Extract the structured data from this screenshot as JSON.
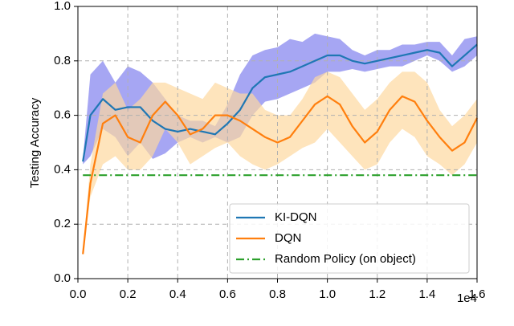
{
  "chart_data": {
    "type": "line",
    "ylabel": "Testing Accuracy",
    "x_offset_label": "1e4",
    "x": [
      0.02,
      0.05,
      0.1,
      0.15,
      0.2,
      0.25,
      0.3,
      0.35,
      0.4,
      0.45,
      0.5,
      0.55,
      0.6,
      0.65,
      0.7,
      0.75,
      0.8,
      0.85,
      0.9,
      0.95,
      1.0,
      1.05,
      1.1,
      1.15,
      1.2,
      1.25,
      1.3,
      1.35,
      1.4,
      1.45,
      1.5,
      1.55,
      1.6
    ],
    "series": [
      {
        "name": "KI-DQN",
        "color": "#1f77b4",
        "band_color": "#8080ee",
        "values": [
          0.43,
          0.6,
          0.66,
          0.62,
          0.63,
          0.63,
          0.58,
          0.55,
          0.54,
          0.55,
          0.54,
          0.53,
          0.57,
          0.62,
          0.7,
          0.74,
          0.75,
          0.76,
          0.78,
          0.8,
          0.82,
          0.82,
          0.8,
          0.79,
          0.8,
          0.81,
          0.82,
          0.83,
          0.84,
          0.83,
          0.78,
          0.82,
          0.86
        ],
        "lower": [
          0.42,
          0.45,
          0.55,
          0.52,
          0.45,
          0.5,
          0.44,
          0.46,
          0.5,
          0.52,
          0.5,
          0.52,
          0.5,
          0.52,
          0.6,
          0.65,
          0.66,
          0.68,
          0.7,
          0.72,
          0.76,
          0.76,
          0.77,
          0.76,
          0.77,
          0.78,
          0.78,
          0.8,
          0.82,
          0.8,
          0.76,
          0.78,
          0.82
        ],
        "upper": [
          0.44,
          0.75,
          0.8,
          0.72,
          0.78,
          0.76,
          0.72,
          0.66,
          0.6,
          0.58,
          0.58,
          0.56,
          0.64,
          0.75,
          0.82,
          0.84,
          0.85,
          0.88,
          0.87,
          0.9,
          0.89,
          0.88,
          0.84,
          0.82,
          0.84,
          0.84,
          0.86,
          0.86,
          0.87,
          0.87,
          0.82,
          0.88,
          0.89
        ]
      },
      {
        "name": "DQN",
        "color": "#ff7f0e",
        "band_color": "#fdd9a0",
        "values": [
          0.09,
          0.35,
          0.57,
          0.6,
          0.52,
          0.5,
          0.6,
          0.65,
          0.6,
          0.53,
          0.55,
          0.6,
          0.6,
          0.58,
          0.55,
          0.52,
          0.5,
          0.52,
          0.58,
          0.64,
          0.67,
          0.64,
          0.56,
          0.5,
          0.54,
          0.62,
          0.67,
          0.65,
          0.58,
          0.52,
          0.47,
          0.5,
          0.59
        ],
        "lower": [
          0.09,
          0.3,
          0.42,
          0.45,
          0.4,
          0.4,
          0.45,
          0.55,
          0.5,
          0.42,
          0.45,
          0.48,
          0.5,
          0.45,
          0.42,
          0.4,
          0.42,
          0.45,
          0.48,
          0.5,
          0.55,
          0.5,
          0.45,
          0.4,
          0.42,
          0.5,
          0.55,
          0.52,
          0.45,
          0.42,
          0.38,
          0.42,
          0.5
        ],
        "upper": [
          0.1,
          0.42,
          0.68,
          0.72,
          0.62,
          0.66,
          0.72,
          0.72,
          0.7,
          0.68,
          0.66,
          0.72,
          0.7,
          0.68,
          0.68,
          0.62,
          0.6,
          0.6,
          0.66,
          0.74,
          0.76,
          0.74,
          0.68,
          0.62,
          0.66,
          0.72,
          0.76,
          0.76,
          0.72,
          0.62,
          0.56,
          0.6,
          0.66
        ]
      },
      {
        "name": "Random Policy (on object)",
        "color": "#2ca02c",
        "dash": "dashdot",
        "values": [
          0.38,
          0.38,
          0.38,
          0.38,
          0.38,
          0.38,
          0.38,
          0.38,
          0.38,
          0.38,
          0.38,
          0.38,
          0.38,
          0.38,
          0.38,
          0.38,
          0.38,
          0.38,
          0.38,
          0.38,
          0.38,
          0.38,
          0.38,
          0.38,
          0.38,
          0.38,
          0.38,
          0.38,
          0.38,
          0.38,
          0.38,
          0.38,
          0.38
        ]
      }
    ],
    "xlim": [
      0,
      1.6
    ],
    "xticks": [
      {
        "value": 0,
        "label": "0.0"
      },
      0.2,
      0.4,
      0.6,
      0.8,
      {
        "value": 1,
        "label": "1.0"
      },
      1.2,
      1.4,
      1.6
    ],
    "ylim": [
      0,
      1
    ],
    "yticks": [
      {
        "value": 0,
        "label": "0.0"
      },
      0.2,
      0.4,
      0.6,
      0.8,
      {
        "value": 1,
        "label": "1.0"
      }
    ],
    "grid": true,
    "legend": "lower right"
  }
}
